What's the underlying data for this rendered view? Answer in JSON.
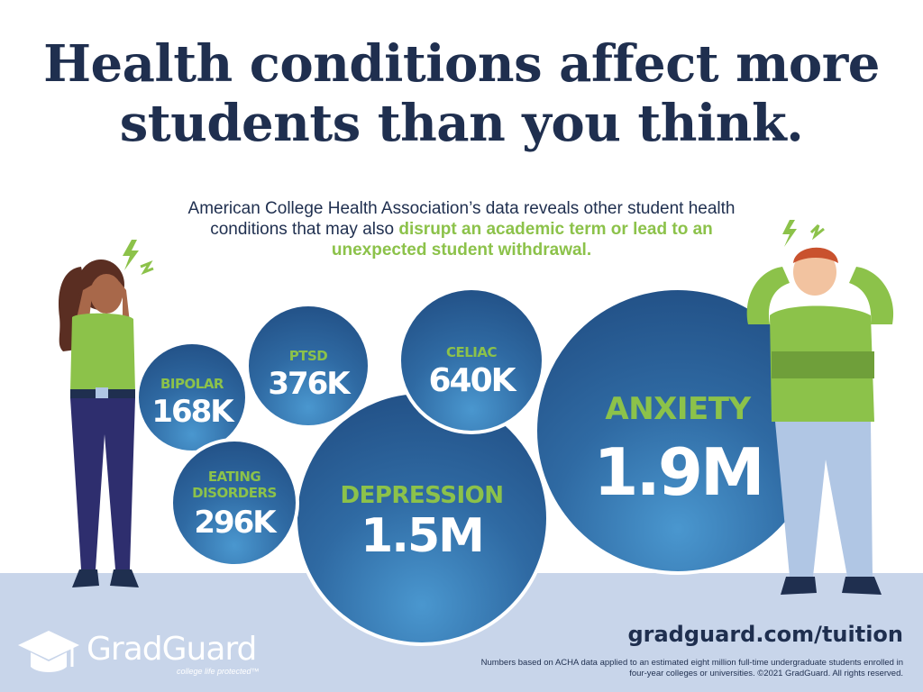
{
  "title": {
    "line1": "Health conditions affect more",
    "line2": "students than you think."
  },
  "subtitle": {
    "part1": "American College Health Association’s data reveals other student health conditions that may also ",
    "highlight": "disrupt an academic term or lead to an unexpected student withdrawal."
  },
  "conditions": {
    "anxiety": {
      "label": "ANXIETY",
      "value": "1.9M"
    },
    "depression": {
      "label": "DEPRESSION",
      "value": "1.5M"
    },
    "celiac": {
      "label": "CELIAC",
      "value": "640K"
    },
    "ptsd": {
      "label": "PTSD",
      "value": "376K"
    },
    "bipolar": {
      "label": "BIPOLAR",
      "value": "168K"
    },
    "eating": {
      "label_line1": "EATING",
      "label_line2": "DISORDERS",
      "value": "296K"
    }
  },
  "footer": {
    "url": "gradguard.com/tuition",
    "note": "Numbers based on ACHA data applied to an estimated eight million full-time undergraduate students enrolled in four-year colleges or universities. ©2021 GradGuard. All rights reserved."
  },
  "logo": {
    "brand": "GradGuard",
    "tagline": "college life protected™"
  },
  "colors": {
    "navy": "#1f2f4f",
    "green": "#8cc24a",
    "bubble_dark": "#1f4a7f",
    "bubble_light": "#4a97cf",
    "floor": "#c8d5ea"
  },
  "icons": [
    "graduation-cap-icon",
    "stress-lightning-icon"
  ]
}
